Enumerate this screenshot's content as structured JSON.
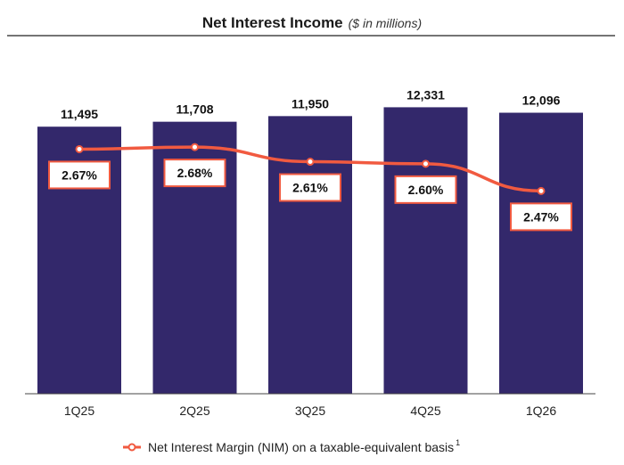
{
  "chart_data": {
    "type": "bar",
    "title": "Net Interest Income",
    "subtitle": "($ in millions)",
    "categories": [
      "1Q25",
      "2Q25",
      "3Q25",
      "4Q25",
      "1Q26"
    ],
    "series": [
      {
        "name": "Net Interest Income",
        "type": "bar",
        "values": [
          11495,
          11708,
          11950,
          12331,
          12096
        ],
        "labels": [
          "11,495",
          "11,708",
          "11,950",
          "12,331",
          "12,096"
        ],
        "color": "#33286b"
      },
      {
        "name": "Net Interest Margin (NIM) on a taxable-equivalent basis",
        "type": "line",
        "values": [
          2.67,
          2.68,
          2.61,
          2.6,
          2.47
        ],
        "labels": [
          "2.67%",
          "2.68%",
          "2.61%",
          "2.60%",
          "2.47%"
        ],
        "color": "#f15a40"
      }
    ],
    "legend": {
      "text": "Net Interest Margin (NIM) on a taxable-equivalent basis",
      "superscript": "1",
      "placement": "bottom"
    },
    "ylim": [
      0,
      12500
    ],
    "nim_ylim": [
      1.5,
      3.0
    ],
    "grid": false
  }
}
